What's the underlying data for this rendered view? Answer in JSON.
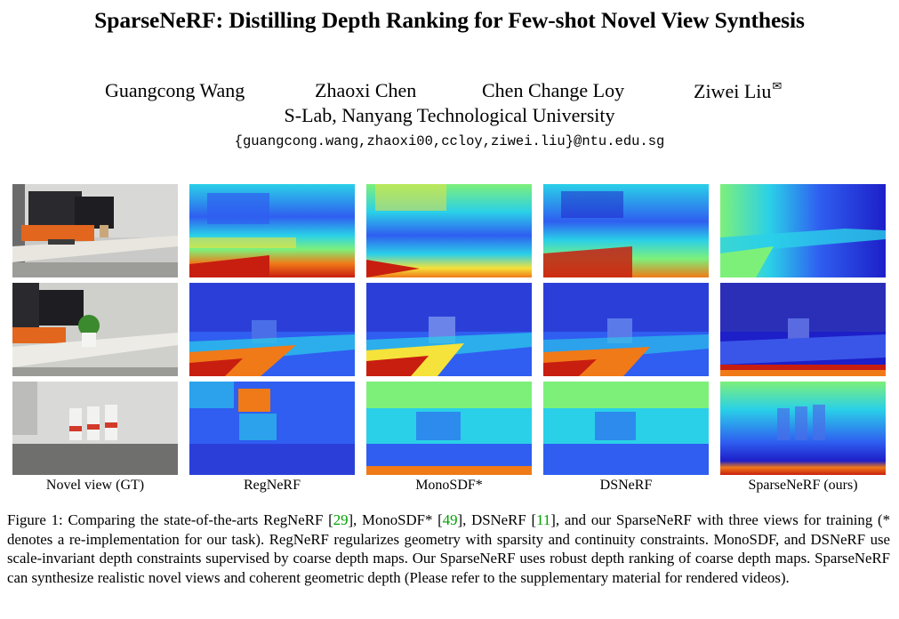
{
  "paper": {
    "title": "SparseNeRF: Distilling Depth Ranking for Few-shot Novel View Synthesis",
    "authors": [
      {
        "name": "Guangcong Wang"
      },
      {
        "name": "Zhaoxi Chen"
      },
      {
        "name": "Chen Change Loy"
      },
      {
        "name": "Ziwei Liu",
        "mark": "✉"
      }
    ],
    "affiliation": "S-Lab, Nanyang Technological University",
    "emails": "{guangcong.wang,zhaoxi00,ccloy,ziwei.liu}@ntu.edu.sg"
  },
  "figure": {
    "columns": [
      "Novel view (GT)",
      "RegNeRF",
      "MonoSDF*",
      "DSNeRF",
      "SparseNeRF (ours)"
    ],
    "rows": 3,
    "colors": {
      "deep_blue": "#1d1fc8",
      "blue": "#2f5ef0",
      "cyan": "#2ad0e8",
      "green": "#7df07a",
      "yellow": "#f5e23a",
      "orange": "#f07a18",
      "red": "#c81e10"
    }
  },
  "caption": {
    "prefix": "Figure 1: Comparing the state-of-the-arts RegNeRF [",
    "ref1": "29",
    "t1": "], MonoSDF* [",
    "ref2": "49",
    "t2": "], DSNeRF [",
    "ref3": "11",
    "t3": "], and our SparseNeRF with three views for training (* denotes a re-implementation for our task). RegNeRF regularizes geometry with sparsity and continuity constraints. MonoSDF, and DSNeRF use scale-invariant depth constraints supervised by coarse depth maps. Our SparseNeRF uses robust depth ranking of coarse depth maps. SparseNeRF can synthesize realistic novel views and coherent geometric depth (Please refer to the supplementary material for rendered videos)."
  }
}
